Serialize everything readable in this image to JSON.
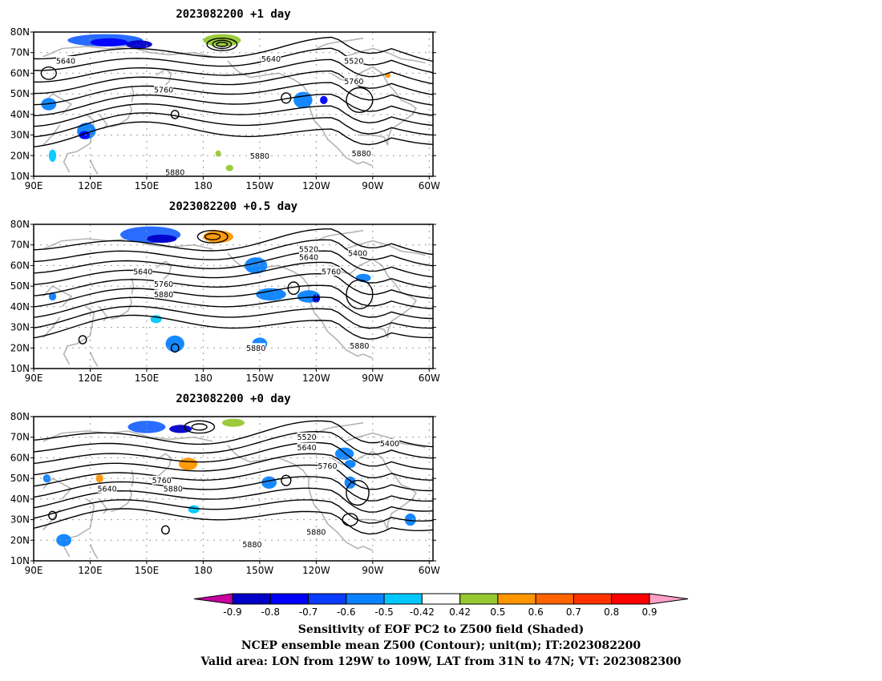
{
  "panels": [
    {
      "title": "2023082200  +1 day",
      "labels": [
        {
          "text": "5640",
          "lon": 107,
          "lat": 66
        },
        {
          "text": "5760",
          "lon": 159,
          "lat": 52
        },
        {
          "text": "5880",
          "lon": 165,
          "lat": 12
        },
        {
          "text": "5880",
          "lon": 210,
          "lat": 20
        },
        {
          "text": "5640",
          "lon": 216,
          "lat": 67
        },
        {
          "text": "5520",
          "lon": 260,
          "lat": 66
        },
        {
          "text": "5760",
          "lon": 260,
          "lat": 56
        },
        {
          "text": "5880",
          "lon": 264,
          "lat": 21
        }
      ]
    },
    {
      "title": "2023082200  +0.5 day",
      "labels": [
        {
          "text": "5640",
          "lon": 148,
          "lat": 57
        },
        {
          "text": "5760",
          "lon": 159,
          "lat": 51
        },
        {
          "text": "5880",
          "lon": 159,
          "lat": 46
        },
        {
          "text": "5520",
          "lon": 236,
          "lat": 68
        },
        {
          "text": "5640",
          "lon": 236,
          "lat": 64
        },
        {
          "text": "5400",
          "lon": 262,
          "lat": 66
        },
        {
          "text": "5760",
          "lon": 248,
          "lat": 57
        },
        {
          "text": "5880",
          "lon": 208,
          "lat": 20
        },
        {
          "text": "5880",
          "lon": 263,
          "lat": 21
        }
      ]
    },
    {
      "title": "2023082200  +0 day",
      "labels": [
        {
          "text": "5640",
          "lon": 129,
          "lat": 45
        },
        {
          "text": "5760",
          "lon": 158,
          "lat": 49
        },
        {
          "text": "5880",
          "lon": 164,
          "lat": 45
        },
        {
          "text": "5520",
          "lon": 235,
          "lat": 70
        },
        {
          "text": "5640",
          "lon": 235,
          "lat": 65
        },
        {
          "text": "5400",
          "lon": 279,
          "lat": 67
        },
        {
          "text": "5760",
          "lon": 246,
          "lat": 56
        },
        {
          "text": "5880",
          "lon": 240,
          "lat": 24
        },
        {
          "text": "5880",
          "lon": 206,
          "lat": 18
        }
      ]
    }
  ],
  "axes": {
    "lat_ticks": [
      "10N",
      "20N",
      "30N",
      "40N",
      "50N",
      "60N",
      "70N",
      "80N"
    ],
    "lon_ticks": [
      "90E",
      "120E",
      "150E",
      "180",
      "150W",
      "120W",
      "90W",
      "60W"
    ]
  },
  "colorbar": {
    "ticks": [
      "-0.9",
      "-0.8",
      "-0.7",
      "-0.6",
      "-0.5",
      "-0.42",
      "0.42",
      "0.5",
      "0.6",
      "0.7",
      "0.8",
      "0.9"
    ],
    "colors": [
      "#0000c8",
      "#0000ff",
      "#0a3cff",
      "#0a82ff",
      "#00c8ff",
      "#ffffff",
      "#96c832",
      "#ff9600",
      "#ff6400",
      "#ff3200",
      "#ff0000"
    ],
    "under_color": "#c800a0",
    "over_color": "#ffa0c8"
  },
  "captions": {
    "line1": "Sensitivity of EOF PC2 to Z500 field (Shaded)",
    "line2": "NCEP ensemble mean Z500 (Contour); unit(m); IT:2023082200",
    "line3": "Valid area: LON from 129W to 109W, LAT from 31N to 47N; VT: 2023082300"
  }
}
